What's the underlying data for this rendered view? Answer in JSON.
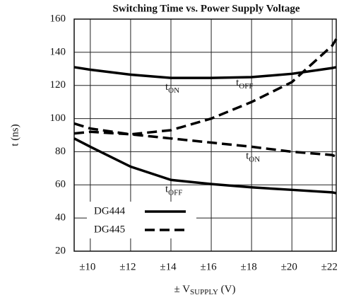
{
  "chart_data": {
    "type": "line",
    "title": "Switching Time vs. Power Supply Voltage",
    "ylabel": "t (ns)",
    "xlabel": "± V",
    "xlabel_sub": "SUPPLY",
    "xlabel_end": " (V)",
    "x": [
      9.2,
      10,
      12,
      14,
      16,
      18,
      20,
      22,
      22.2
    ],
    "xlim": [
      9.2,
      22.2
    ],
    "xticks": [
      {
        "value": 10,
        "label": "±10"
      },
      {
        "value": 12,
        "label": "±12"
      },
      {
        "value": 14,
        "label": "±14"
      },
      {
        "value": 16,
        "label": "±16"
      },
      {
        "value": 18,
        "label": "±18"
      },
      {
        "value": 20,
        "label": "±20"
      },
      {
        "value": 22,
        "label": "±22"
      }
    ],
    "ylim": [
      20,
      160
    ],
    "yticks": [
      20,
      40,
      60,
      80,
      100,
      120,
      140,
      160
    ],
    "grid": true,
    "legend": "lower left",
    "series": [
      {
        "name": "DG444",
        "color": "#000000",
        "dashed": false,
        "curves": [
          {
            "label": "t",
            "label_sub": "ON",
            "values": [
              131,
              129.5,
              126.5,
              124.5,
              124.5,
              125,
              127,
              130.5,
              131
            ]
          },
          {
            "label": "t",
            "label_sub": "OFF",
            "values": [
              88,
              83,
              71,
              63,
              60.5,
              58.5,
              57,
              55.5,
              55
            ]
          }
        ]
      },
      {
        "name": "DG445",
        "color": "#000000",
        "dashed": true,
        "curves": [
          {
            "label": "t",
            "label_sub": "OFF",
            "values": [
              97,
              94,
              90.5,
              93,
              100,
              110,
              122,
              144,
              148
            ]
          },
          {
            "label": "t",
            "label_sub": "ON",
            "values": [
              91,
              92,
              90.5,
              88,
              85.5,
              83,
              80,
              78,
              77
            ]
          }
        ]
      }
    ]
  }
}
